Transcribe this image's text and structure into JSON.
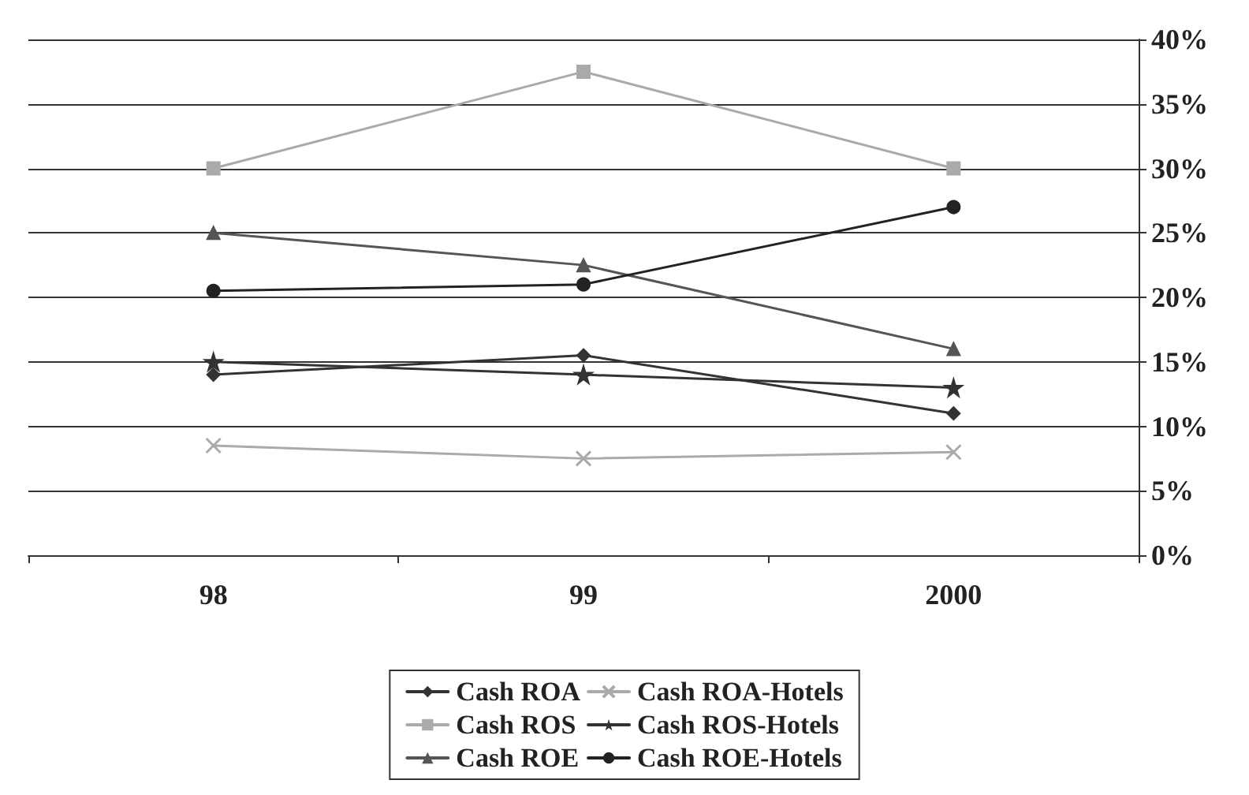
{
  "chart_data": {
    "type": "line",
    "categories": [
      "98",
      "99",
      "2000"
    ],
    "series": [
      {
        "name": "Cash ROA",
        "color": "#333333",
        "marker": "diamond",
        "values": [
          14,
          15.5,
          11
        ]
      },
      {
        "name": "Cash ROS",
        "color": "#aaaaaa",
        "marker": "square",
        "values": [
          30,
          37.5,
          30
        ]
      },
      {
        "name": "Cash ROE",
        "color": "#555555",
        "marker": "triangle",
        "values": [
          25,
          22.5,
          16
        ]
      },
      {
        "name": "Cash ROA-Hotels",
        "color": "#aaaaaa",
        "marker": "cross",
        "values": [
          8.5,
          7.5,
          8
        ]
      },
      {
        "name": "Cash ROS-Hotels",
        "color": "#333333",
        "marker": "star",
        "values": [
          15,
          14,
          13
        ]
      },
      {
        "name": "Cash ROE-Hotels",
        "color": "#222222",
        "marker": "circle",
        "values": [
          20.5,
          21,
          27
        ]
      }
    ],
    "ylim": [
      0,
      40
    ],
    "yticks": [
      {
        "value": 0,
        "label": "0%"
      },
      {
        "value": 5,
        "label": "5%"
      },
      {
        "value": 10,
        "label": "10%"
      },
      {
        "value": 15,
        "label": "15%"
      },
      {
        "value": 20,
        "label": "20%"
      },
      {
        "value": 25,
        "label": "25%"
      },
      {
        "value": 30,
        "label": "30%"
      },
      {
        "value": 35,
        "label": "35%"
      },
      {
        "value": 40,
        "label": "40%"
      }
    ],
    "grid": "y",
    "legend": "bottom",
    "line_style": "solid"
  }
}
